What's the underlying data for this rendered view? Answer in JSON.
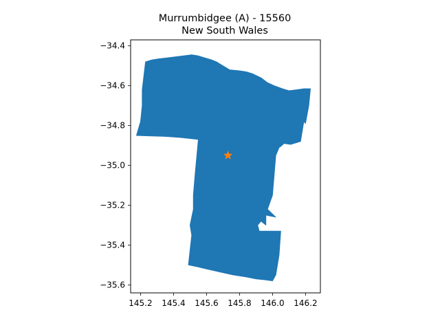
{
  "map": {
    "title_line1": "Murrumbidgee (A) - 15560",
    "title_line2": "New South Wales",
    "region_color": "#1f77b4",
    "marker_color": "#ff7f0e",
    "marker_icon": "star-marker-icon"
  },
  "chart_data": {
    "type": "map",
    "title": "Murrumbidgee (A) - 15560",
    "subtitle": "New South Wales",
    "xlim": [
      145.14,
      146.29
    ],
    "ylim": [
      -35.64,
      -34.37
    ],
    "x_ticks": [
      145.2,
      145.4,
      145.6,
      145.8,
      146.0,
      146.2
    ],
    "x_tick_labels": [
      "145.2",
      "145.4",
      "145.6",
      "145.8",
      "146.0",
      "146.2"
    ],
    "y_ticks": [
      -34.4,
      -34.6,
      -34.8,
      -35.0,
      -35.2,
      -35.4,
      -35.6
    ],
    "y_tick_labels": [
      "−34.4",
      "−34.6",
      "−34.8",
      "−35.0",
      "−35.2",
      "−35.4",
      "−35.6"
    ],
    "grid": false,
    "region_outline": [
      [
        145.175,
        -34.85
      ],
      [
        145.2,
        -34.78
      ],
      [
        145.21,
        -34.7
      ],
      [
        145.21,
        -34.62
      ],
      [
        145.23,
        -34.48
      ],
      [
        145.27,
        -34.47
      ],
      [
        145.31,
        -34.465
      ],
      [
        145.36,
        -34.46
      ],
      [
        145.41,
        -34.455
      ],
      [
        145.46,
        -34.45
      ],
      [
        145.51,
        -34.445
      ],
      [
        145.55,
        -34.45
      ],
      [
        145.59,
        -34.46
      ],
      [
        145.63,
        -34.47
      ],
      [
        145.66,
        -34.48
      ],
      [
        145.7,
        -34.5
      ],
      [
        145.74,
        -34.52
      ],
      [
        145.8,
        -34.525
      ],
      [
        145.84,
        -34.53
      ],
      [
        145.88,
        -34.54
      ],
      [
        145.93,
        -34.56
      ],
      [
        145.97,
        -34.585
      ],
      [
        146.01,
        -34.6
      ],
      [
        146.06,
        -34.615
      ],
      [
        146.1,
        -34.625
      ],
      [
        146.15,
        -34.62
      ],
      [
        146.19,
        -34.615
      ],
      [
        146.23,
        -34.615
      ],
      [
        146.22,
        -34.7
      ],
      [
        146.2,
        -34.79
      ],
      [
        146.19,
        -34.78
      ],
      [
        146.17,
        -34.88
      ],
      [
        146.11,
        -34.895
      ],
      [
        146.07,
        -34.89
      ],
      [
        146.05,
        -34.905
      ],
      [
        146.04,
        -34.91
      ],
      [
        146.02,
        -34.95
      ],
      [
        146.01,
        -35.05
      ],
      [
        146.0,
        -35.15
      ],
      [
        145.97,
        -35.22
      ],
      [
        146.02,
        -35.26
      ],
      [
        145.96,
        -35.25
      ],
      [
        145.96,
        -35.3
      ],
      [
        145.93,
        -35.28
      ],
      [
        145.91,
        -35.3
      ],
      [
        145.92,
        -35.33
      ],
      [
        145.99,
        -35.33
      ],
      [
        146.05,
        -35.33
      ],
      [
        146.04,
        -35.45
      ],
      [
        146.02,
        -35.55
      ],
      [
        146.0,
        -35.58
      ],
      [
        145.96,
        -35.575
      ],
      [
        145.9,
        -35.57
      ],
      [
        145.84,
        -35.56
      ],
      [
        145.76,
        -35.55
      ],
      [
        145.68,
        -35.535
      ],
      [
        145.6,
        -35.52
      ],
      [
        145.55,
        -35.51
      ],
      [
        145.49,
        -35.5
      ],
      [
        145.51,
        -35.35
      ],
      [
        145.5,
        -35.3
      ],
      [
        145.52,
        -35.22
      ],
      [
        145.52,
        -35.15
      ],
      [
        145.53,
        -35.05
      ],
      [
        145.54,
        -34.96
      ],
      [
        145.55,
        -34.87
      ],
      [
        145.44,
        -34.86
      ],
      [
        145.35,
        -34.855
      ],
      [
        145.25,
        -34.852
      ]
    ],
    "point": {
      "x": 145.73,
      "y": -34.95
    }
  }
}
